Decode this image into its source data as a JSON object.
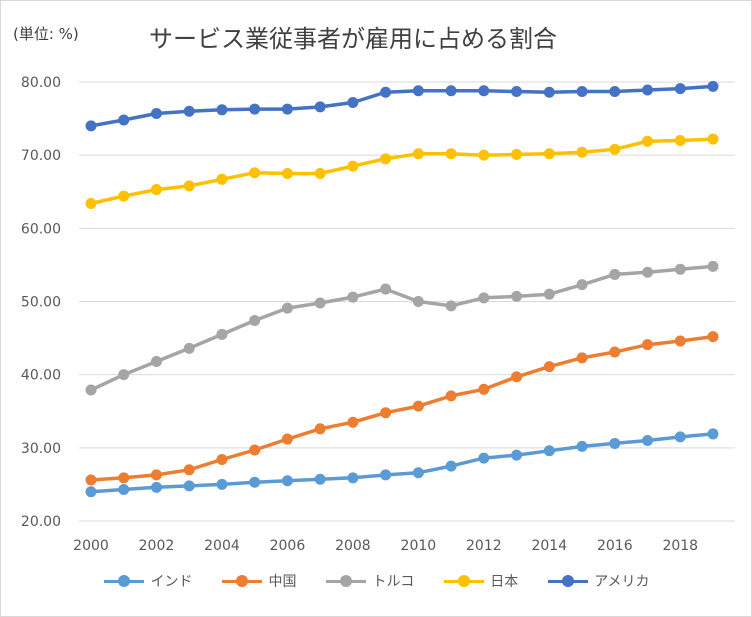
{
  "chart_data": {
    "type": "line",
    "title": "サービス業従事者が雇用に占める割合",
    "unit_label": "(単位: %)",
    "x": [
      2000,
      2001,
      2002,
      2003,
      2004,
      2005,
      2006,
      2007,
      2008,
      2009,
      2010,
      2011,
      2012,
      2013,
      2014,
      2015,
      2016,
      2017,
      2018,
      2019
    ],
    "x_tick_labels": [
      "2000",
      "2002",
      "2004",
      "2006",
      "2008",
      "2010",
      "2012",
      "2014",
      "2016",
      "2018"
    ],
    "y_tick_labels": [
      "20.00",
      "30.00",
      "40.00",
      "50.00",
      "60.00",
      "70.00",
      "80.00"
    ],
    "ylim": [
      20,
      80
    ],
    "grid": true,
    "legend_position": "bottom",
    "series": [
      {
        "name": "インド",
        "color": "#5b9bd5",
        "values": [
          24.0,
          24.3,
          24.6,
          24.8,
          25.0,
          25.3,
          25.5,
          25.7,
          25.9,
          26.3,
          26.6,
          27.5,
          28.6,
          29.0,
          29.6,
          30.2,
          30.6,
          31.0,
          31.5,
          31.9
        ]
      },
      {
        "name": "中国",
        "color": "#ed7d31",
        "values": [
          25.6,
          25.9,
          26.3,
          27.0,
          28.4,
          29.7,
          31.2,
          32.6,
          33.5,
          34.8,
          35.7,
          37.1,
          38.0,
          39.7,
          41.1,
          42.3,
          43.1,
          44.1,
          44.6,
          45.2
        ]
      },
      {
        "name": "トルコ",
        "color": "#a5a5a5",
        "values": [
          37.9,
          40.0,
          41.8,
          43.6,
          45.5,
          47.4,
          49.1,
          49.8,
          50.6,
          51.7,
          50.0,
          49.4,
          50.5,
          50.7,
          51.0,
          52.3,
          53.7,
          54.0,
          54.4,
          54.8
        ]
      },
      {
        "name": "日本",
        "color": "#ffc000",
        "values": [
          63.4,
          64.4,
          65.3,
          65.8,
          66.7,
          67.6,
          67.5,
          67.5,
          68.5,
          69.5,
          70.2,
          70.2,
          70.0,
          70.1,
          70.2,
          70.4,
          70.8,
          71.9,
          72.0,
          72.2
        ]
      },
      {
        "name": "アメリカ",
        "color": "#4472c4",
        "values": [
          74.0,
          74.8,
          75.7,
          76.0,
          76.2,
          76.3,
          76.3,
          76.6,
          77.2,
          78.6,
          78.8,
          78.8,
          78.8,
          78.7,
          78.6,
          78.7,
          78.7,
          78.9,
          79.1,
          79.4
        ]
      }
    ]
  }
}
